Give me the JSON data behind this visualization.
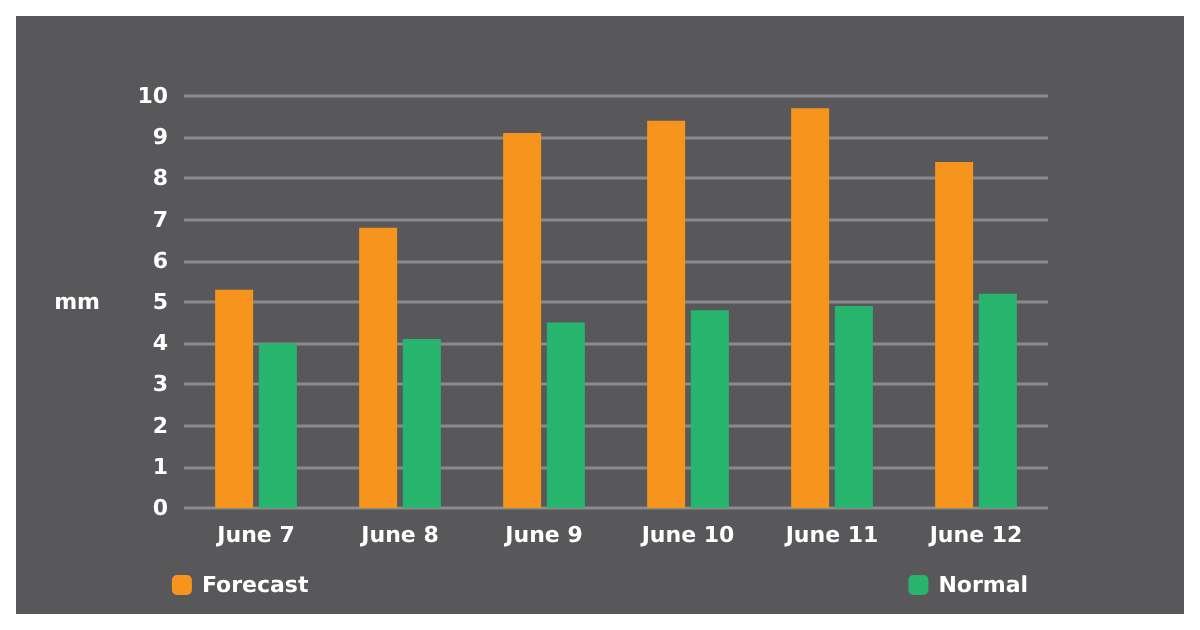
{
  "chart_data": {
    "type": "bar",
    "ylabel": "mm",
    "categories": [
      "June 7",
      "June 8",
      "June 9",
      "June 10",
      "June 11",
      "June 12"
    ],
    "series": [
      {
        "name": "Forecast",
        "color": "#f7941d",
        "values": [
          5.3,
          6.8,
          9.1,
          9.4,
          9.7,
          8.4
        ]
      },
      {
        "name": "Normal",
        "color": "#27b56e",
        "values": [
          4.0,
          4.1,
          4.5,
          4.8,
          4.9,
          5.2
        ]
      }
    ],
    "ylim": [
      0,
      10
    ],
    "yticks": [
      0,
      1,
      2,
      3,
      4,
      5,
      6,
      7,
      8,
      9,
      10
    ],
    "grid": "y",
    "legend": "bottom"
  }
}
